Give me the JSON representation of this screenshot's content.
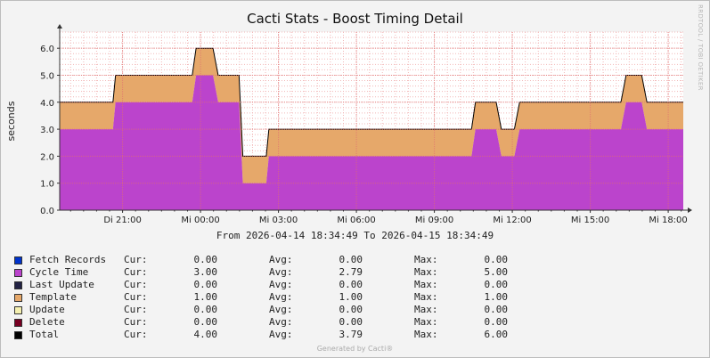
{
  "chart_data": {
    "type": "area",
    "title": "Cacti Stats - Boost Timing Detail",
    "ylabel": "seconds",
    "xlabel": "",
    "ylim": [
      0,
      6.6
    ],
    "xlim": [
      0,
      24
    ],
    "y_ticks": [
      "0.0",
      "1.0",
      "2.0",
      "3.0",
      "4.0",
      "5.0",
      "6.0"
    ],
    "x_ticks": [
      {
        "label": "Di 21:00",
        "x": 2.42
      },
      {
        "label": "Mi 00:00",
        "x": 5.42
      },
      {
        "label": "Mi 03:00",
        "x": 8.42
      },
      {
        "label": "Mi 06:00",
        "x": 11.42
      },
      {
        "label": "Mi 09:00",
        "x": 14.42
      },
      {
        "label": "Mi 12:00",
        "x": 17.42
      },
      {
        "label": "Mi 15:00",
        "x": 20.42
      },
      {
        "label": "Mi 18:00",
        "x": 23.42
      }
    ],
    "grid": true,
    "stacked": true,
    "series": [
      {
        "name": "Cycle Time",
        "color": "#BB44CC",
        "x": [
          0,
          2.05,
          2.15,
          5.1,
          5.25,
          5.9,
          6.1,
          6.9,
          7.05,
          7.95,
          8.05,
          15.85,
          16.0,
          16.8,
          17.0,
          17.5,
          17.7,
          21.6,
          21.8,
          22.4,
          22.6,
          24
        ],
        "values": [
          3.0,
          3.0,
          4.0,
          4.0,
          5.0,
          5.0,
          4.0,
          4.0,
          1.0,
          1.0,
          2.0,
          2.0,
          3.0,
          3.0,
          2.0,
          2.0,
          3.0,
          3.0,
          4.0,
          4.0,
          3.0,
          3.0
        ]
      },
      {
        "name": "Template",
        "color": "#E6A86A",
        "x": [
          0,
          24
        ],
        "values": [
          1.0,
          1.0
        ]
      },
      {
        "name": "Total",
        "color": "#000000",
        "x": [
          0,
          2.05,
          2.15,
          5.1,
          5.25,
          5.9,
          6.1,
          6.9,
          7.05,
          7.95,
          8.05,
          15.85,
          16.0,
          16.8,
          17.0,
          17.5,
          17.7,
          21.6,
          21.8,
          22.4,
          22.6,
          24
        ],
        "values": [
          4.0,
          4.0,
          5.0,
          5.0,
          6.0,
          6.0,
          5.0,
          5.0,
          2.0,
          2.0,
          3.0,
          3.0,
          4.0,
          4.0,
          3.0,
          3.0,
          4.0,
          4.0,
          5.0,
          5.0,
          4.0,
          4.0
        ]
      }
    ]
  },
  "date_range": "From 2026-04-14 18:34:49 To 2026-04-15 18:34:49",
  "legend": {
    "cur_label": "Cur:",
    "avg_label": "Avg:",
    "max_label": "Max:",
    "items": [
      {
        "name": "Fetch Records",
        "color": "#0033CC",
        "cur": "0.00",
        "avg": "0.00",
        "max": "0.00"
      },
      {
        "name": "Cycle Time",
        "color": "#BB44CC",
        "cur": "3.00",
        "avg": "2.79",
        "max": "5.00"
      },
      {
        "name": "Last Update",
        "color": "#222244",
        "cur": "0.00",
        "avg": "0.00",
        "max": "0.00"
      },
      {
        "name": "Template",
        "color": "#E6A86A",
        "cur": "1.00",
        "avg": "1.00",
        "max": "1.00"
      },
      {
        "name": "Update",
        "color": "#F5F0B0",
        "cur": "0.00",
        "avg": "0.00",
        "max": "0.00"
      },
      {
        "name": "Delete",
        "color": "#770022",
        "cur": "0.00",
        "avg": "0.00",
        "max": "0.00"
      },
      {
        "name": "Total",
        "color": "#000000",
        "cur": "4.00",
        "avg": "3.79",
        "max": "6.00"
      }
    ]
  },
  "watermark": "RRDTOOL / TOBI OETIKER",
  "footer": "Generated by Cacti®"
}
